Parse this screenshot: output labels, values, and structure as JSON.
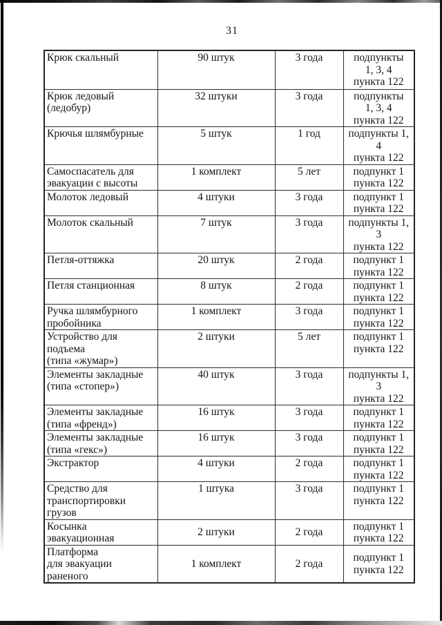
{
  "page": {
    "number": "31"
  },
  "colors": {
    "paper": "#ffffff",
    "ink": "#141414",
    "table_border": "#2c2c2c",
    "scan_edge": "#0a0a0a"
  },
  "table": {
    "rows": [
      {
        "name": [
          "Крюк скальный"
        ],
        "quantity": "90 штук",
        "term": "3 года",
        "reference": [
          "подпункты",
          "1, 3, 4",
          "пункта 122"
        ]
      },
      {
        "name": [
          "Крюк ледовый (ледобур)"
        ],
        "quantity": "32 штуки",
        "term": "3 года",
        "reference": [
          "подпункты",
          "1, 3, 4",
          "пункта 122"
        ]
      },
      {
        "name": [
          "Крючья шлямбурные"
        ],
        "quantity": "5 штук",
        "term": "1 год",
        "reference": [
          "подпункты 1, 4",
          "пункта 122"
        ]
      },
      {
        "name": [
          "Самоспасатель для",
          "эвакуации с высоты"
        ],
        "quantity": "1 комплект",
        "term": "5 лет",
        "reference": [
          "подпункт 1",
          "пункта 122"
        ]
      },
      {
        "name": [
          "Молоток ледовый"
        ],
        "quantity": "4 штуки",
        "term": "3 года",
        "reference": [
          "подпункт 1",
          "пункта 122"
        ]
      },
      {
        "name": [
          "Молоток скальный"
        ],
        "quantity": "7 штук",
        "term": "3 года",
        "reference": [
          "подпункты 1, 3",
          "пункта 122"
        ]
      },
      {
        "name": [
          "Петля-оттяжка"
        ],
        "quantity": "20 штук",
        "term": "2 года",
        "reference": [
          "подпункт 1",
          "пункта 122"
        ]
      },
      {
        "name": [
          "Петля станционная"
        ],
        "quantity": "8 штук",
        "term": "2 года",
        "reference": [
          "подпункт 1",
          "пункта 122"
        ]
      },
      {
        "name": [
          "Ручка шлямбурного",
          "пробойника"
        ],
        "quantity": "1 комплект",
        "term": "3 года",
        "reference": [
          "подпункт 1",
          "пункта 122"
        ]
      },
      {
        "name": [
          "Устройство для подъема",
          "(типа «жумар»)"
        ],
        "quantity": "2 штуки",
        "term": "5 лет",
        "reference": [
          "подпункт 1",
          "пункта 122"
        ]
      },
      {
        "name": [
          "Элементы закладные",
          "(типа «стопер»)"
        ],
        "quantity": "40 штук",
        "term": "3 года",
        "reference": [
          "подпункты 1, 3",
          "пункта 122"
        ]
      },
      {
        "name": [
          "Элементы закладные",
          "(типа «френд»)"
        ],
        "quantity": "16 штук",
        "term": "3 года",
        "reference": [
          "подпункт 1",
          "пункта 122"
        ]
      },
      {
        "name": [
          "Элементы закладные",
          "(типа «гекс»)"
        ],
        "quantity": "16 штук",
        "term": "3 года",
        "reference": [
          "подпункт 1",
          "пункта 122"
        ]
      },
      {
        "name": [
          "Экстрактор"
        ],
        "quantity": "4 штуки",
        "term": "2 года",
        "reference": [
          "подпункт 1",
          "пункта 122"
        ]
      },
      {
        "name": [
          "Средство для",
          "транспортировки грузов"
        ],
        "quantity": "1 штука",
        "term": "3 года",
        "reference": [
          "подпункт 1",
          "пункта 122"
        ]
      },
      {
        "name": [
          "Косынка эвакуационная"
        ],
        "quantity": "2 штуки",
        "term": "2 года",
        "reference": [
          "подпункт 1",
          "пункта 122"
        ]
      },
      {
        "name": [
          "Платформа",
          "для эвакуации раненого"
        ],
        "quantity": "1 комплект",
        "term": "2 года",
        "reference": [
          "подпункт 1",
          "пункта 122"
        ]
      }
    ]
  }
}
